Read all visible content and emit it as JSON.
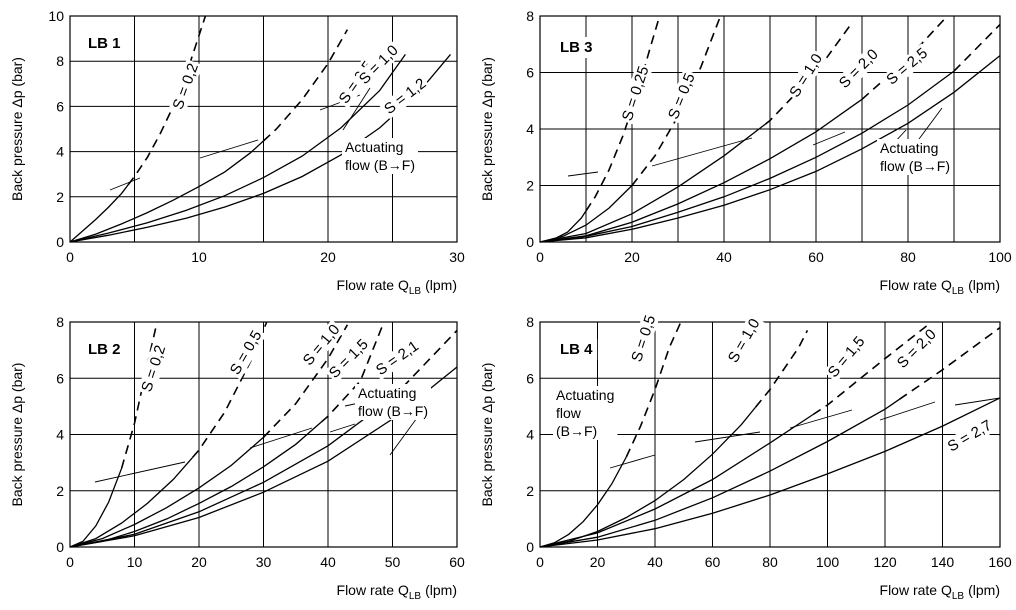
{
  "chart_data": [
    {
      "id": "lb1",
      "type": "line",
      "panel_label": "LB 1",
      "xlabel_prefix": "Flow rate Q",
      "xlabel_sub": "LB",
      "xlabel_unit": "(lpm)",
      "ylabel": "Back pressure Δp (bar)",
      "xlim": [
        0,
        30
      ],
      "ylim": [
        0,
        10
      ],
      "xticks": [
        0,
        10,
        20,
        30
      ],
      "yticks": [
        0,
        2,
        4,
        6,
        8,
        10
      ],
      "xgrid": [
        5,
        10,
        15,
        20,
        25
      ],
      "ygrid": [
        2,
        4,
        6,
        8
      ],
      "annotation_lines": [
        "Actuating",
        "flow (B→F)"
      ],
      "series": [
        {
          "name": "S = 0,2",
          "dashed_from": 4.5,
          "x": [
            0,
            1,
            2,
            3,
            4,
            5,
            6,
            7,
            8,
            9,
            10.5
          ],
          "y": [
            0,
            0.5,
            1.0,
            1.55,
            2.15,
            2.9,
            3.75,
            4.8,
            6.0,
            7.4,
            10.0
          ]
        },
        {
          "name": "S = 0,5",
          "dashed_from": 15,
          "x": [
            0,
            2,
            4,
            6,
            8,
            10,
            12,
            14,
            16,
            18,
            20,
            21.5
          ],
          "y": [
            0,
            0.35,
            0.8,
            1.3,
            1.85,
            2.45,
            3.1,
            3.95,
            5.0,
            6.3,
            7.9,
            9.4
          ]
        },
        {
          "name": "S = 1,0",
          "x": [
            0,
            3,
            6,
            9,
            12,
            15,
            18,
            21,
            24,
            26
          ],
          "y": [
            0,
            0.4,
            0.85,
            1.4,
            2.05,
            2.85,
            3.8,
            5.05,
            6.7,
            8.3
          ]
        },
        {
          "name": "S = 1,2",
          "x": [
            0,
            3,
            6,
            9,
            12,
            15,
            18,
            21,
            24,
            27,
            29.5
          ],
          "y": [
            0,
            0.3,
            0.65,
            1.05,
            1.55,
            2.15,
            2.9,
            3.85,
            5.05,
            6.6,
            8.3
          ]
        }
      ]
    },
    {
      "id": "lb3",
      "type": "line",
      "panel_label": "LB 3",
      "xlabel_prefix": "Flow rate Q",
      "xlabel_sub": "LB",
      "xlabel_unit": "(lpm)",
      "ylabel": "Back pressure Δp (bar)",
      "xlim": [
        0,
        100
      ],
      "ylim": [
        0,
        8
      ],
      "xticks": [
        0,
        20,
        40,
        60,
        80,
        100
      ],
      "yticks": [
        0,
        2,
        4,
        6,
        8
      ],
      "xgrid": [
        10,
        20,
        30,
        40,
        50,
        60,
        70,
        80,
        90
      ],
      "ygrid": [
        2,
        4,
        6
      ],
      "annotation_lines": [
        "Actuating",
        "flow (B→F)"
      ],
      "series": [
        {
          "name": "S = 0,25",
          "dashed_from": 10,
          "x": [
            0,
            3,
            6,
            9,
            12,
            15,
            18,
            21,
            24,
            26
          ],
          "y": [
            0,
            0.1,
            0.35,
            0.85,
            1.6,
            2.55,
            3.75,
            5.2,
            6.9,
            8.0
          ]
        },
        {
          "name": "S = 0,5",
          "dashed_from": 20,
          "x": [
            0,
            5,
            10,
            15,
            20,
            25,
            30,
            35,
            39
          ],
          "y": [
            0,
            0.2,
            0.6,
            1.2,
            2.0,
            3.05,
            4.45,
            6.2,
            7.9
          ]
        },
        {
          "name": "S = 1,0",
          "dashed_from": 49,
          "x": [
            0,
            10,
            20,
            30,
            40,
            50,
            60,
            68
          ],
          "y": [
            0,
            0.3,
            1.0,
            1.95,
            3.05,
            4.3,
            6.0,
            7.8
          ]
        },
        {
          "name": "S = 2,0",
          "dashed_from": 70,
          "x": [
            0,
            10,
            20,
            30,
            40,
            50,
            60,
            70,
            80,
            88
          ],
          "y": [
            0,
            0.22,
            0.7,
            1.35,
            2.1,
            2.95,
            3.9,
            5.05,
            6.5,
            7.9
          ]
        },
        {
          "name": "S = 2,5",
          "dashed_from": 90,
          "x": [
            0,
            10,
            20,
            30,
            40,
            50,
            60,
            70,
            80,
            90,
            100
          ],
          "y": [
            0,
            0.2,
            0.55,
            1.05,
            1.6,
            2.25,
            3.0,
            3.85,
            4.85,
            6.05,
            7.7
          ]
        },
        {
          "name": "",
          "x": [
            0,
            10,
            20,
            30,
            40,
            50,
            60,
            70,
            80,
            90,
            100
          ],
          "y": [
            0,
            0.15,
            0.45,
            0.85,
            1.3,
            1.85,
            2.5,
            3.3,
            4.2,
            5.3,
            6.6
          ]
        }
      ]
    },
    {
      "id": "lb2",
      "type": "line",
      "panel_label": "LB 2",
      "xlabel_prefix": "Flow rate Q",
      "xlabel_sub": "LB",
      "xlabel_unit": "(lpm)",
      "ylabel": "Back pressure Δp (bar)",
      "xlim": [
        0,
        60
      ],
      "ylim": [
        0,
        8
      ],
      "xticks": [
        0,
        10,
        20,
        30,
        40,
        50,
        60
      ],
      "yticks": [
        0,
        2,
        4,
        6,
        8
      ],
      "xgrid": [
        10,
        20,
        30,
        40,
        50
      ],
      "ygrid": [
        2,
        4,
        6
      ],
      "annotation_lines": [
        "Actuating",
        "flow (B→F)"
      ],
      "series": [
        {
          "name": "S = 0,2",
          "dashed_from": 8,
          "x": [
            0,
            2,
            4,
            6,
            8,
            10,
            12,
            13.5
          ],
          "y": [
            0,
            0.2,
            0.75,
            1.6,
            2.8,
            4.4,
            6.5,
            8.0
          ]
        },
        {
          "name": "S = 0,5",
          "dashed_from": 19,
          "x": [
            0,
            4,
            8,
            12,
            16,
            20,
            24,
            28,
            30.5
          ],
          "y": [
            0,
            0.3,
            0.85,
            1.55,
            2.4,
            3.45,
            4.8,
            6.6,
            8.0
          ]
        },
        {
          "name": "S = 1,0",
          "dashed_from": 30,
          "x": [
            0,
            5,
            10,
            15,
            20,
            25,
            30,
            35,
            40,
            43
          ],
          "y": [
            0,
            0.3,
            0.8,
            1.4,
            2.1,
            2.9,
            3.9,
            5.1,
            6.7,
            7.9
          ]
        },
        {
          "name": "S = 1,5",
          "dashed_from": 39,
          "x": [
            0,
            5,
            10,
            15,
            20,
            25,
            30,
            35,
            40,
            45,
            48.5
          ],
          "y": [
            0,
            0.2,
            0.55,
            1.0,
            1.55,
            2.15,
            2.85,
            3.65,
            4.65,
            5.9,
            7.9
          ]
        },
        {
          "name": "S = 2,1",
          "dashed_from": 50,
          "x": [
            0,
            10,
            20,
            30,
            40,
            50,
            60
          ],
          "y": [
            0,
            0.45,
            1.25,
            2.3,
            3.6,
            5.3,
            7.7
          ]
        },
        {
          "name": "",
          "x": [
            0,
            10,
            20,
            30,
            40,
            50,
            60
          ],
          "y": [
            0,
            0.4,
            1.05,
            1.95,
            3.05,
            4.55,
            6.4
          ]
        }
      ]
    },
    {
      "id": "lb4",
      "type": "line",
      "panel_label": "LB 4",
      "xlabel_prefix": "Flow rate Q",
      "xlabel_sub": "LB",
      "xlabel_unit": "(lpm)",
      "ylabel": "Back pressure Δp (bar)",
      "xlim": [
        0,
        160
      ],
      "ylim": [
        0,
        8
      ],
      "xticks": [
        0,
        20,
        40,
        60,
        80,
        100,
        120,
        140,
        160
      ],
      "yticks": [
        0,
        2,
        4,
        6,
        8
      ],
      "xgrid": [
        20,
        40,
        60,
        80,
        100,
        120,
        140
      ],
      "ygrid": [
        2,
        4,
        6
      ],
      "annotation_lines": [
        "Actuating",
        "flow",
        "(B→F)"
      ],
      "series": [
        {
          "name": "S = 0,5",
          "dashed_from": 30,
          "x": [
            0,
            5,
            10,
            15,
            20,
            25,
            30,
            35,
            40,
            45,
            49
          ],
          "y": [
            0,
            0.15,
            0.45,
            0.9,
            1.5,
            2.25,
            3.2,
            4.3,
            5.6,
            7.1,
            8.0
          ]
        },
        {
          "name": "S = 1,0",
          "dashed_from": 75,
          "x": [
            0,
            10,
            20,
            30,
            40,
            50,
            60,
            70,
            80,
            90,
            93
          ],
          "y": [
            0,
            0.2,
            0.55,
            1.05,
            1.65,
            2.4,
            3.3,
            4.35,
            5.6,
            7.1,
            7.7
          ]
        },
        {
          "name": "S = 1,5",
          "dashed_from": 95,
          "x": [
            0,
            20,
            40,
            60,
            80,
            100,
            120,
            135
          ],
          "y": [
            0,
            0.5,
            1.35,
            2.4,
            3.7,
            5.05,
            6.7,
            7.9
          ]
        },
        {
          "name": "S = 2,0",
          "dashed_from": 125,
          "x": [
            0,
            20,
            40,
            60,
            80,
            100,
            120,
            140,
            160
          ],
          "y": [
            0,
            0.35,
            0.95,
            1.75,
            2.7,
            3.75,
            4.9,
            6.3,
            7.8
          ]
        },
        {
          "name": "S = 2,7",
          "x": [
            0,
            20,
            40,
            60,
            80,
            100,
            120,
            140,
            160
          ],
          "y": [
            0,
            0.25,
            0.65,
            1.2,
            1.85,
            2.6,
            3.4,
            4.3,
            5.3
          ]
        }
      ]
    }
  ]
}
